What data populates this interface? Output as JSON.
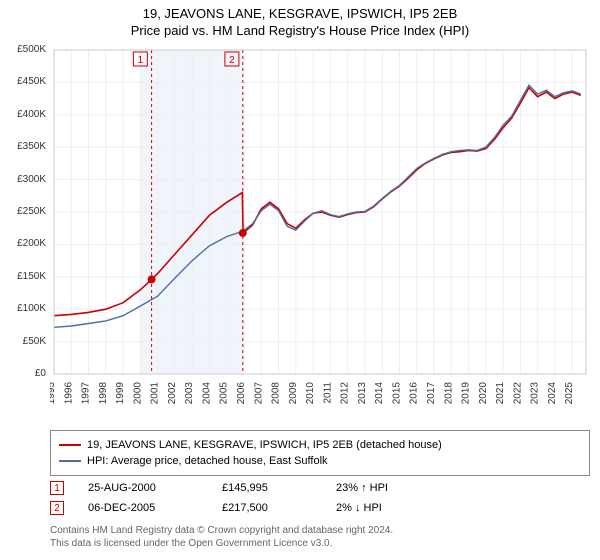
{
  "title_line1": "19, JEAVONS LANE, KESGRAVE, IPSWICH, IP5 2EB",
  "title_line2": "Price paid vs. HM Land Registry's House Price Index (HPI)",
  "chart": {
    "type": "line",
    "background_color": "#ffffff",
    "grid_color": "#eeeeee",
    "x": {
      "min": 1995,
      "max": 2025.8,
      "ticks": [
        1995,
        1996,
        1997,
        1998,
        1999,
        2000,
        2001,
        2002,
        2003,
        2004,
        2005,
        2006,
        2007,
        2008,
        2009,
        2010,
        2011,
        2012,
        2013,
        2014,
        2015,
        2016,
        2017,
        2018,
        2019,
        2020,
        2021,
        2022,
        2023,
        2024,
        2025
      ],
      "labels": [
        "1995",
        "1996",
        "1997",
        "1998",
        "1999",
        "2000",
        "2001",
        "2002",
        "2003",
        "2004",
        "2005",
        "2006",
        "2007",
        "2008",
        "2009",
        "2010",
        "2011",
        "2012",
        "2013",
        "2014",
        "2015",
        "2016",
        "2017",
        "2018",
        "2019",
        "2020",
        "2021",
        "2022",
        "2023",
        "2024",
        "2025"
      ]
    },
    "y": {
      "min": 0,
      "max": 500000,
      "ticks": [
        0,
        50000,
        100000,
        150000,
        200000,
        250000,
        300000,
        350000,
        400000,
        450000,
        500000
      ],
      "labels": [
        "£0",
        "£50K",
        "£100K",
        "£150K",
        "£200K",
        "£250K",
        "£300K",
        "£350K",
        "£400K",
        "£450K",
        "£500K"
      ]
    },
    "alt_band": {
      "from": 2000,
      "to": 2005.9,
      "fill": "#f0f5fb"
    },
    "markers": [
      {
        "badge": "1",
        "x": 2000.65,
        "y": 145995,
        "color": "#cc0000"
      },
      {
        "badge": "2",
        "x": 2005.93,
        "y": 217500,
        "color": "#cc0000"
      }
    ],
    "vlines": [
      {
        "x": 2000.65,
        "color": "#cc0000",
        "dash": "3,3"
      },
      {
        "x": 2005.93,
        "color": "#cc0000",
        "dash": "3,3"
      }
    ],
    "badge_positions": [
      {
        "badge": "1",
        "x": 2000.0
      },
      {
        "badge": "2",
        "x": 2005.3
      }
    ],
    "series": [
      {
        "name": "red",
        "color": "#cc0000",
        "width": 1.6,
        "points": [
          [
            1995.0,
            90000
          ],
          [
            1996.0,
            92000
          ],
          [
            1997.0,
            95000
          ],
          [
            1998.0,
            100000
          ],
          [
            1999.0,
            110000
          ],
          [
            2000.0,
            130000
          ],
          [
            2000.65,
            145995
          ],
          [
            2001.0,
            155000
          ],
          [
            2002.0,
            185000
          ],
          [
            2003.0,
            215000
          ],
          [
            2004.0,
            245000
          ],
          [
            2005.0,
            265000
          ],
          [
            2005.9,
            280000
          ],
          [
            2005.95,
            217500
          ],
          [
            2006.5,
            230000
          ],
          [
            2007.0,
            255000
          ],
          [
            2007.5,
            265000
          ],
          [
            2008.0,
            255000
          ],
          [
            2008.5,
            232000
          ],
          [
            2009.0,
            225000
          ],
          [
            2009.5,
            238000
          ],
          [
            2010.0,
            248000
          ],
          [
            2010.5,
            250000
          ],
          [
            2011.0,
            245000
          ],
          [
            2011.5,
            242000
          ],
          [
            2012.0,
            246000
          ],
          [
            2012.5,
            249000
          ],
          [
            2013.0,
            250000
          ],
          [
            2013.5,
            258000
          ],
          [
            2014.0,
            270000
          ],
          [
            2014.5,
            281000
          ],
          [
            2015.0,
            290000
          ],
          [
            2015.5,
            302000
          ],
          [
            2016.0,
            315000
          ],
          [
            2016.5,
            325000
          ],
          [
            2017.0,
            332000
          ],
          [
            2017.5,
            338000
          ],
          [
            2018.0,
            342000
          ],
          [
            2018.5,
            343000
          ],
          [
            2019.0,
            345000
          ],
          [
            2019.5,
            344000
          ],
          [
            2020.0,
            348000
          ],
          [
            2020.5,
            362000
          ],
          [
            2021.0,
            380000
          ],
          [
            2021.5,
            395000
          ],
          [
            2022.0,
            418000
          ],
          [
            2022.5,
            442000
          ],
          [
            2023.0,
            428000
          ],
          [
            2023.5,
            435000
          ],
          [
            2024.0,
            425000
          ],
          [
            2024.5,
            432000
          ],
          [
            2025.0,
            435000
          ],
          [
            2025.5,
            430000
          ]
        ]
      },
      {
        "name": "blue",
        "color": "#4a6fa5",
        "width": 1.4,
        "points": [
          [
            1995.0,
            72000
          ],
          [
            1996.0,
            74000
          ],
          [
            1997.0,
            78000
          ],
          [
            1998.0,
            82000
          ],
          [
            1999.0,
            90000
          ],
          [
            2000.0,
            105000
          ],
          [
            2001.0,
            120000
          ],
          [
            2002.0,
            148000
          ],
          [
            2003.0,
            175000
          ],
          [
            2004.0,
            198000
          ],
          [
            2005.0,
            212000
          ],
          [
            2005.9,
            220000
          ],
          [
            2006.5,
            232000
          ],
          [
            2007.0,
            252000
          ],
          [
            2007.5,
            262000
          ],
          [
            2008.0,
            252000
          ],
          [
            2008.5,
            228000
          ],
          [
            2009.0,
            222000
          ],
          [
            2009.5,
            236000
          ],
          [
            2010.0,
            248000
          ],
          [
            2010.5,
            252000
          ],
          [
            2011.0,
            246000
          ],
          [
            2011.5,
            243000
          ],
          [
            2012.0,
            247000
          ],
          [
            2012.5,
            250000
          ],
          [
            2013.0,
            251000
          ],
          [
            2013.5,
            259000
          ],
          [
            2014.0,
            271000
          ],
          [
            2014.5,
            282000
          ],
          [
            2015.0,
            291000
          ],
          [
            2015.5,
            304000
          ],
          [
            2016.0,
            317000
          ],
          [
            2016.5,
            326000
          ],
          [
            2017.0,
            333000
          ],
          [
            2017.5,
            339000
          ],
          [
            2018.0,
            343000
          ],
          [
            2018.5,
            345000
          ],
          [
            2019.0,
            346000
          ],
          [
            2019.5,
            345000
          ],
          [
            2020.0,
            350000
          ],
          [
            2020.5,
            365000
          ],
          [
            2021.0,
            384000
          ],
          [
            2021.5,
            398000
          ],
          [
            2022.0,
            422000
          ],
          [
            2022.5,
            446000
          ],
          [
            2023.0,
            432000
          ],
          [
            2023.5,
            438000
          ],
          [
            2024.0,
            428000
          ],
          [
            2024.5,
            434000
          ],
          [
            2025.0,
            437000
          ],
          [
            2025.5,
            432000
          ]
        ]
      }
    ]
  },
  "legend": {
    "items": [
      {
        "color": "#cc0000",
        "label": "19, JEAVONS LANE, KESGRAVE, IPSWICH, IP5 2EB (detached house)"
      },
      {
        "color": "#4a6fa5",
        "label": "HPI: Average price, detached house, East Suffolk"
      }
    ]
  },
  "marker_rows": [
    {
      "badge": "1",
      "color": "#cc0000",
      "date": "25-AUG-2000",
      "price": "£145,995",
      "delta": "23% ↑ HPI"
    },
    {
      "badge": "2",
      "color": "#cc0000",
      "date": "06-DEC-2005",
      "price": "£217,500",
      "delta": "2% ↓ HPI"
    }
  ],
  "footnote_line1": "Contains HM Land Registry data © Crown copyright and database right 2024.",
  "footnote_line2": "This data is licensed under the Open Government Licence v3.0."
}
